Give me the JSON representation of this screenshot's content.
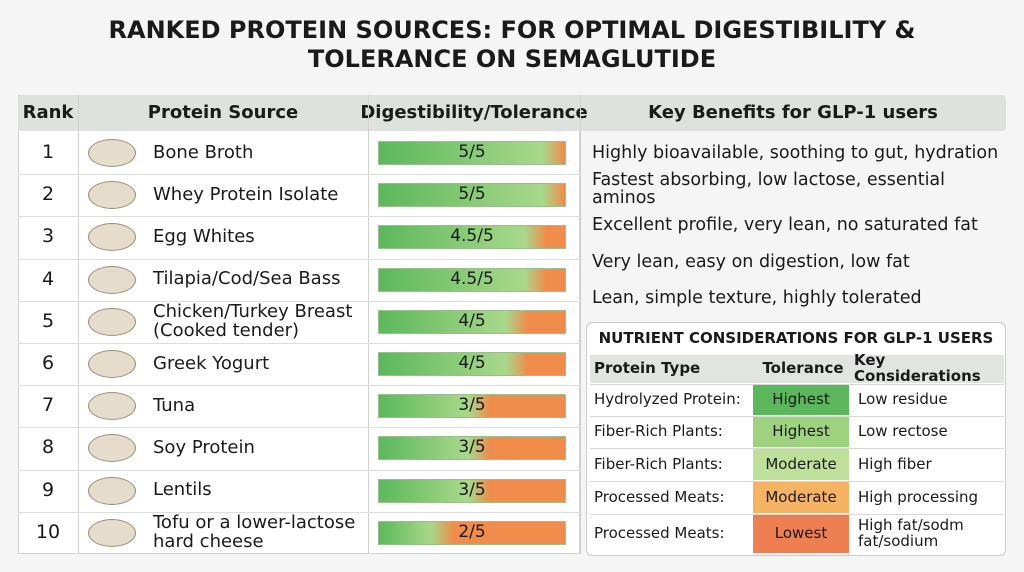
{
  "title": "RANKED PROTEIN SOURCES: FOR OPTIMAL DIGESTIBILITY & TOLERANCE ON SEMAGLUTIDE",
  "table": {
    "columns": [
      "Rank",
      "Protein Source",
      "Digestibility/Tolerance",
      "Key Benefits for GLP-1 users"
    ],
    "digestibility_max": 5,
    "rows": [
      {
        "rank": 1,
        "source": "Bone Broth",
        "digestibility": 5,
        "digestibility_label": "5/5",
        "benefit": "Highly bioavailable, soothing to gut, hydration"
      },
      {
        "rank": 2,
        "source": "Whey Protein Isolate",
        "digestibility": 5,
        "digestibility_label": "5/5",
        "benefit": "Fastest absorbing, low lactose, essential aminos"
      },
      {
        "rank": 3,
        "source": "Egg Whites",
        "digestibility": 4.5,
        "digestibility_label": "4.5/5",
        "benefit": "Excellent profile, very lean, no saturated fat"
      },
      {
        "rank": 4,
        "source": "Tilapia/Cod/Sea Bass",
        "digestibility": 4.5,
        "digestibility_label": "4.5/5",
        "benefit": "Very lean, easy on digestion, low fat"
      },
      {
        "rank": 5,
        "source": "Chicken/Turkey Breast\n(Cooked tender)",
        "digestibility": 4,
        "digestibility_label": "4/5",
        "benefit": "Lean, simple texture, highly tolerated"
      },
      {
        "rank": 6,
        "source": "Greek Yogurt",
        "digestibility": 4,
        "digestibility_label": "4/5"
      },
      {
        "rank": 7,
        "source": "Tuna",
        "digestibility": 3,
        "digestibility_label": "3/5"
      },
      {
        "rank": 8,
        "source": "Soy Protein",
        "digestibility": 3,
        "digestibility_label": "3/5"
      },
      {
        "rank": 9,
        "source": "Lentils",
        "digestibility": 3,
        "digestibility_label": "3/5"
      },
      {
        "rank": 10,
        "source": "Tofu or a lower-lactose\nhard cheese",
        "digestibility": 2,
        "digestibility_label": "2/5"
      }
    ]
  },
  "nutrients": {
    "title": "NUTRIENT CONSIDERATIONS FOR GLP-1 USERS",
    "columns": [
      "Protein Type",
      "Tolerance",
      "Key Considerations"
    ],
    "rows": [
      {
        "type": "Hydrolyzed Protein:",
        "tolerance": "Highest",
        "color": "#5cb65c",
        "consideration": "Low residue"
      },
      {
        "type": "Fiber-Rich Plants:",
        "tolerance": "Highest",
        "color": "#9fd27e",
        "consideration": "Low rectose"
      },
      {
        "type": "Fiber-Rich Plants:",
        "tolerance": "Moderate",
        "color": "#bfe09a",
        "consideration": "High fiber"
      },
      {
        "type": "Processed Meats:",
        "tolerance": "Moderate",
        "color": "#f5b463",
        "consideration": "High processing"
      },
      {
        "type": "Processed Meats:",
        "tolerance": "Lowest",
        "color": "#ee7f52",
        "consideration": "High fat/sodm\nfat/sodium"
      }
    ]
  }
}
